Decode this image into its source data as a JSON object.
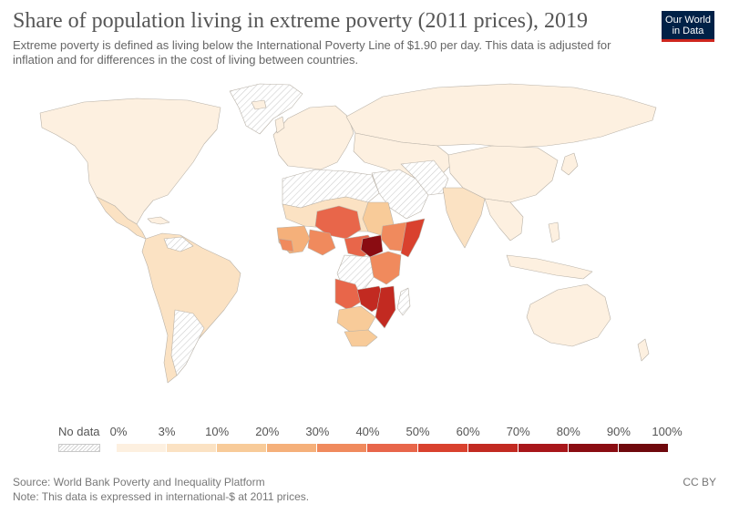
{
  "header": {
    "title": "Share of population living in extreme poverty (2011 prices), 2019",
    "subtitle": "Extreme poverty is defined as living below the International Poverty Line of $1.90 per day. This data is adjusted for inflation and for differences in the cost of living between countries.",
    "logo_line1": "Our World",
    "logo_line2": "in Data"
  },
  "legend": {
    "no_data_label": "No data",
    "ticks": [
      "0%",
      "3%",
      "10%",
      "20%",
      "30%",
      "40%",
      "50%",
      "60%",
      "70%",
      "80%",
      "90%",
      "100%"
    ],
    "colors": [
      "#fdf0e0",
      "#fbe2c3",
      "#f8cb99",
      "#f5b07a",
      "#f08a5d",
      "#e8664a",
      "#d9412e",
      "#c22a21",
      "#a8161a",
      "#8a0c12",
      "#6f080d"
    ]
  },
  "footer": {
    "source": "Source: World Bank Poverty and Inequality Platform",
    "note": "Note: This data is expressed in international-$ at 2011 prices.",
    "license": "CC BY"
  }
}
